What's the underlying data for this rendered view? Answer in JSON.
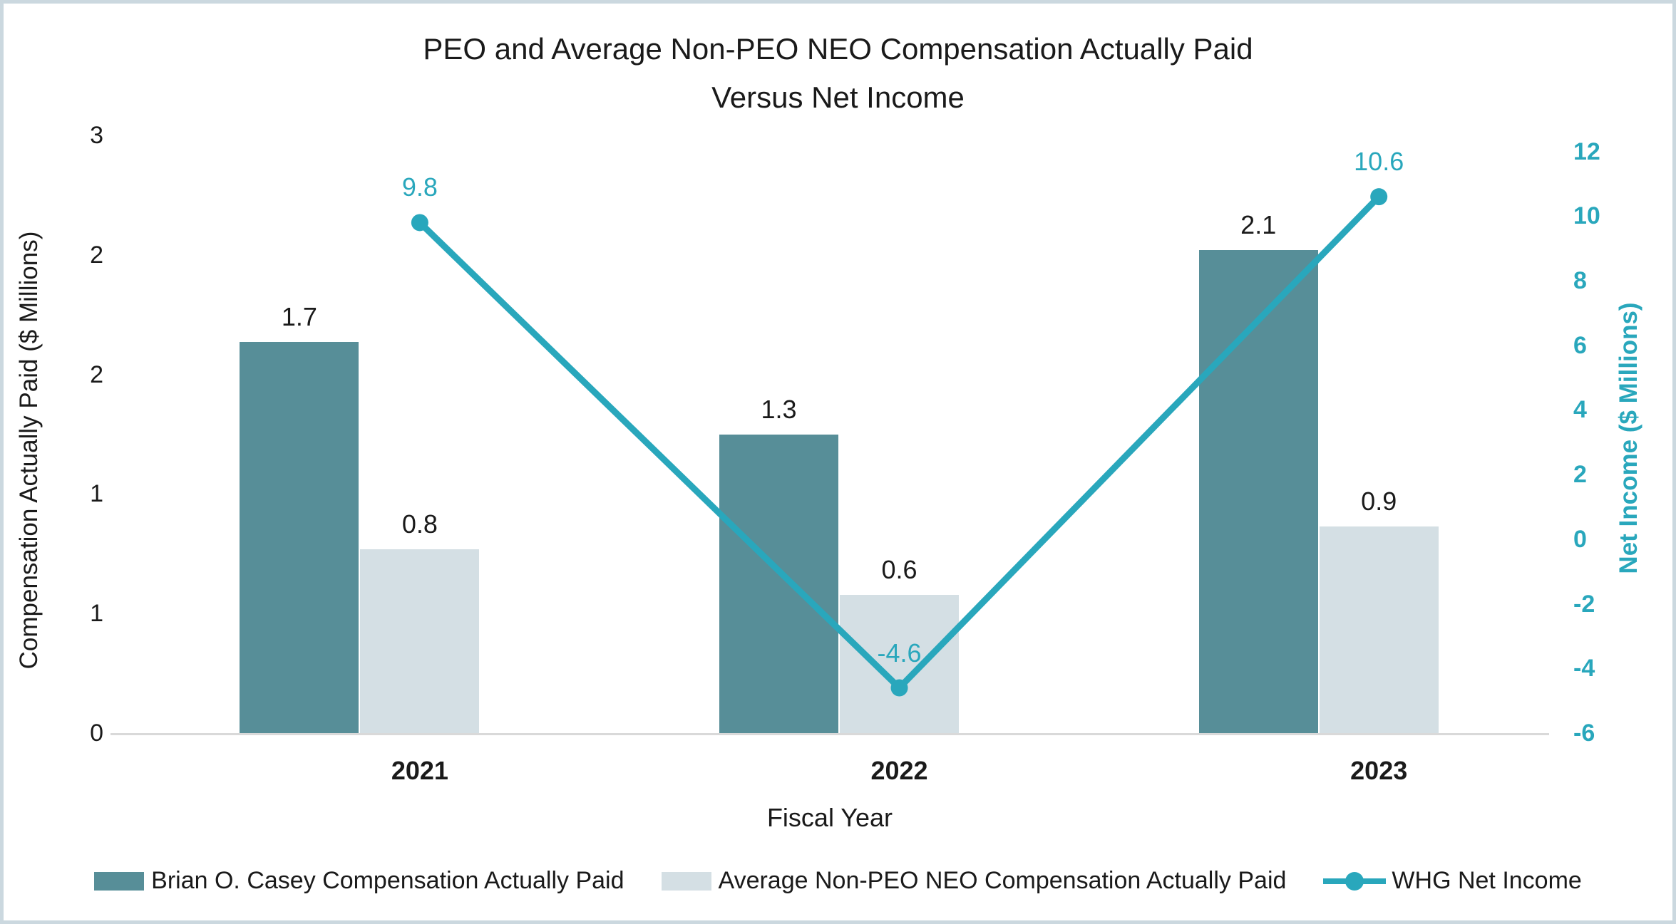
{
  "chart_data": {
    "type": "combo-bar-line",
    "title_lines": [
      "PEO and Average Non-PEO NEO Compensation Actually Paid",
      "Versus Net Income"
    ],
    "categories": [
      "2021",
      "2022",
      "2023"
    ],
    "series": [
      {
        "name": "Brian O. Casey Compensation Actually Paid",
        "type": "bar",
        "axis": "left",
        "color": "#578e98",
        "values": [
          1.7,
          1.3,
          2.1
        ],
        "labels": [
          "1.7",
          "1.3",
          "2.1"
        ]
      },
      {
        "name": "Average Non-PEO NEO Compensation Actually Paid",
        "type": "bar",
        "axis": "left",
        "color": "#d4dfe4",
        "values": [
          0.8,
          0.6,
          0.9
        ],
        "labels": [
          "0.8",
          "0.6",
          "0.9"
        ]
      },
      {
        "name": "WHG Net Income",
        "type": "line",
        "axis": "right",
        "color": "#29a7bc",
        "values": [
          9.8,
          -4.6,
          10.6
        ],
        "labels": [
          "9.8",
          "-4.6",
          "10.6"
        ]
      }
    ],
    "left_axis": {
      "title": "Compensation Actually Paid ($ Millions)",
      "tick_labels": [
        "3",
        "2",
        "2",
        "1",
        "1",
        "0"
      ],
      "range": [
        0,
        2.6
      ]
    },
    "right_axis": {
      "title": "Net Income ($ Millions)",
      "tick_labels": [
        "12",
        "10",
        "8",
        "6",
        "4",
        "2",
        "0",
        "-2",
        "-4",
        "-6"
      ],
      "tick_values": [
        12,
        10,
        8,
        6,
        4,
        2,
        0,
        -2,
        -4,
        -6
      ],
      "range": [
        -6,
        12.5
      ],
      "color": "#29a7bc"
    },
    "x_axis": {
      "title": "Fiscal Year"
    },
    "legend_position": "bottom",
    "grid": false,
    "colors": {
      "peo_bar": "#578e98",
      "non_peo_bar": "#d4dfe4",
      "net_income_line": "#29a7bc",
      "axis_line": "#d9d9d9",
      "text": "#1a1a1a",
      "frame_border": "#cbd8df"
    }
  }
}
